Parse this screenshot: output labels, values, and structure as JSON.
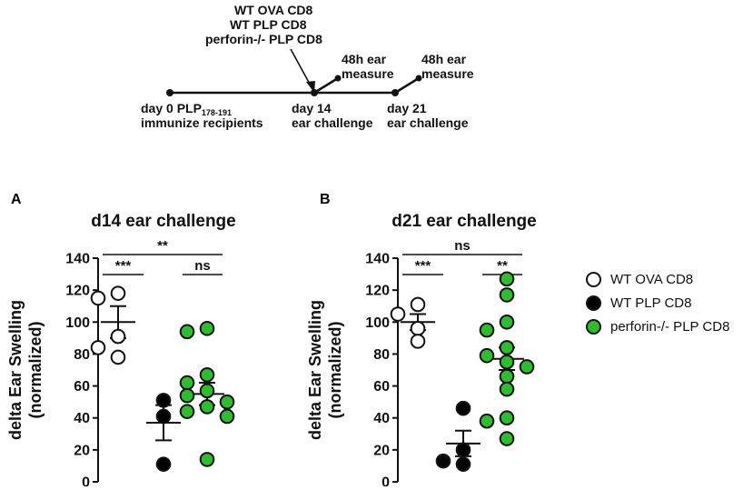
{
  "timeline": {
    "cells_line1": "WT OVA CD8",
    "cells_line2": "WT PLP CD8",
    "cells_line3": "perforin-/- PLP CD8",
    "day0_prefix": "day 0 PLP",
    "day0_subscript": "178-191",
    "day0_line2": "immunize recipients",
    "day14_line1": "day 14",
    "day14_line2": "ear challenge",
    "measure1_line1": "48h ear",
    "measure1_line2": "measure",
    "day21_line1": "day 21",
    "day21_line2": "ear challenge",
    "measure2_line1": "48h ear",
    "measure2_line2": "measure"
  },
  "legend": [
    {
      "label": "WT OVA CD8",
      "fill": "#ffffff"
    },
    {
      "label": "WT PLP CD8",
      "fill": "#000000"
    },
    {
      "label": "perforin-/- PLP CD8",
      "fill": "#2ebd2e"
    }
  ],
  "colors": {
    "ova": "#ffffff",
    "plp": "#000000",
    "perforin": "#2ebd2e",
    "outline": "#111111"
  },
  "chart_data": [
    {
      "panel": "A",
      "type": "scatter",
      "title": "d14 ear challenge",
      "ylabel": "delta Ear Swelling (normalized)",
      "ylabel_line1": "delta Ear Swelling",
      "ylabel_line2": "(normalized)",
      "ylim": [
        0,
        140
      ],
      "yticks": [
        0,
        20,
        40,
        60,
        80,
        100,
        120,
        140
      ],
      "groups": [
        {
          "name": "WT OVA CD8",
          "fill": "#ffffff",
          "mean": 100,
          "sem": 10,
          "values": [
            118,
            115,
            91,
            84,
            78
          ]
        },
        {
          "name": "WT PLP CD8",
          "fill": "#000000",
          "mean": 37,
          "sem": 11,
          "values": [
            51,
            41,
            11
          ]
        },
        {
          "name": "perforin-/- PLP CD8",
          "fill": "#2ebd2e",
          "mean": 55,
          "sem": 7,
          "values": [
            96,
            94,
            67,
            62,
            57,
            54,
            50,
            47,
            44,
            41,
            14
          ]
        }
      ],
      "significance": [
        {
          "label": "**",
          "from": 0,
          "to": 2
        },
        {
          "label": "***",
          "from": 0,
          "to": 1
        },
        {
          "label": "ns",
          "from": 1,
          "to": 2
        }
      ]
    },
    {
      "panel": "B",
      "type": "scatter",
      "title": "d21 ear challenge",
      "ylabel": "delta Ear Swelling (normalized)",
      "ylabel_line1": "delta Ear Swelling",
      "ylabel_line2": "(normalized)",
      "ylim": [
        0,
        140
      ],
      "yticks": [
        0,
        20,
        40,
        60,
        80,
        100,
        120,
        140
      ],
      "groups": [
        {
          "name": "WT OVA CD8",
          "fill": "#ffffff",
          "mean": 100,
          "sem": 5,
          "values": [
            111,
            105,
            96,
            88
          ]
        },
        {
          "name": "WT PLP CD8",
          "fill": "#000000",
          "mean": 24,
          "sem": 8,
          "values": [
            46,
            20,
            13,
            11
          ]
        },
        {
          "name": "perforin-/- PLP CD8",
          "fill": "#2ebd2e",
          "mean": 77,
          "sem": 7,
          "values": [
            127,
            117,
            100,
            95,
            84,
            79,
            75,
            72,
            66,
            58,
            40,
            38,
            27
          ]
        }
      ],
      "significance": [
        {
          "label": "ns",
          "from": 0,
          "to": 2
        },
        {
          "label": "***",
          "from": 0,
          "to": 1
        },
        {
          "label": "**",
          "from": 1,
          "to": 2
        }
      ]
    }
  ]
}
